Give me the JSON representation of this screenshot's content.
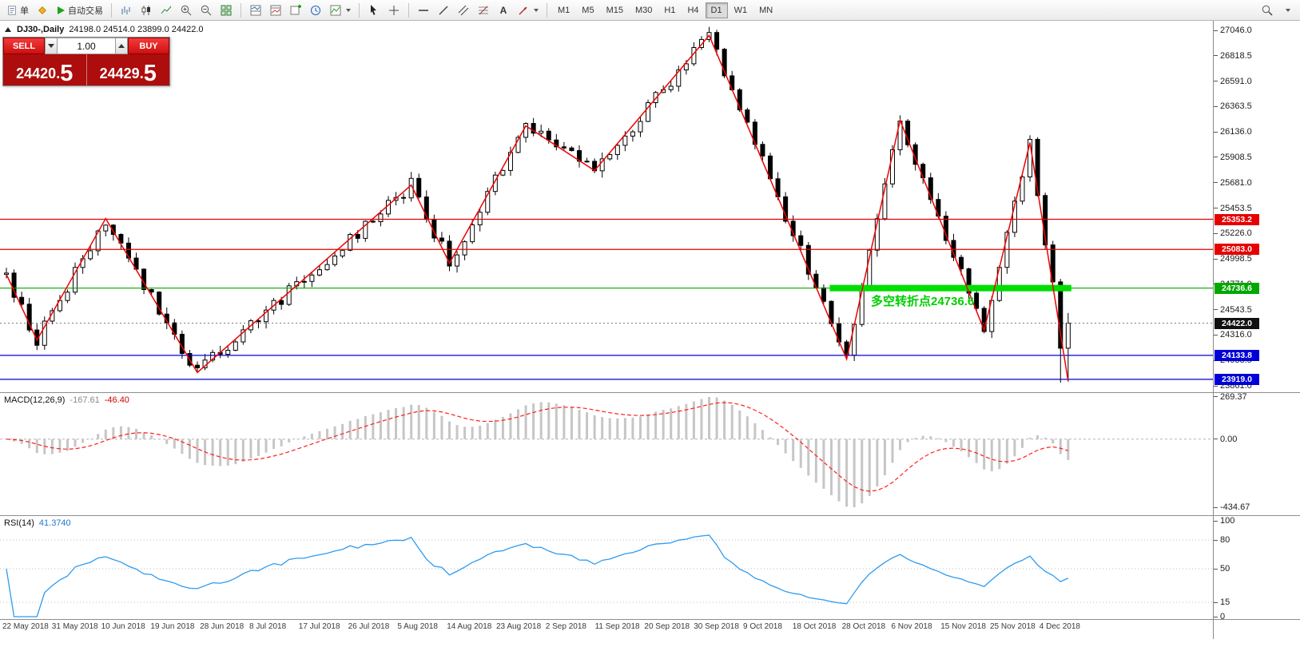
{
  "toolbar": {
    "order_label": "单",
    "autotrading_label": "自动交易",
    "text_tool_label": "A",
    "timeframes": [
      "M1",
      "M5",
      "M15",
      "M30",
      "H1",
      "H4",
      "D1",
      "W1",
      "MN"
    ],
    "active_timeframe": "D1"
  },
  "one_click": {
    "sell_label": "SELL",
    "buy_label": "BUY",
    "volume": "1.00",
    "sell_price_main": "24420.",
    "sell_price_big": "5",
    "buy_price_main": "24429.",
    "buy_price_big": "5"
  },
  "chart": {
    "symbol_title": "DJ30-,Daily",
    "ohlc_text": "24198.0 24514.0 23899.0 24422.0",
    "annotation": "多空转折点24736.6"
  },
  "macd_panel": {
    "name": "MACD(12,26,9)",
    "value_main": "-167.61",
    "value_signal": "-46.40",
    "axis_labels": [
      "269.37",
      "0.00",
      "-434.67"
    ]
  },
  "rsi_panel": {
    "name": "RSI(14)",
    "value": "41.3740",
    "axis_labels": [
      "100",
      "80",
      "50",
      "15",
      "0"
    ]
  },
  "chart_data": {
    "type": "candlestick",
    "symbol": "DJ30",
    "timeframe": "Daily",
    "title": "DJ30-,Daily",
    "ohlc_current": {
      "open": 24198.0,
      "high": 24514.0,
      "low": 23899.0,
      "close": 24422.0
    },
    "price_axis_ticks": [
      27046.0,
      26818.5,
      26591.0,
      26363.5,
      26136.0,
      25908.5,
      25681.0,
      25453.5,
      25226.0,
      24998.5,
      24771.0,
      24543.5,
      24316.0,
      24088.5,
      23861.0
    ],
    "horizontal_levels": [
      {
        "price": 25353.2,
        "label": "25353.2",
        "color": "#e60000"
      },
      {
        "price": 25083.0,
        "label": "25083.0",
        "color": "#e60000"
      },
      {
        "price": 24736.6,
        "label": "24736.6",
        "color": "#00a800"
      },
      {
        "price": 24133.8,
        "label": "24133.8",
        "color": "#0000d8"
      },
      {
        "price": 23919.0,
        "label": "23919.0",
        "color": "#0000d8"
      }
    ],
    "current_price": {
      "price": 24422.0,
      "label": "24422.0",
      "color": "#000000"
    },
    "highlight_zone": {
      "price": 24736.6,
      "color": "#00dd00",
      "i_from": 108,
      "i_to": 139
    },
    "annotation": {
      "text": "多空转折点24736.6",
      "color": "#00ce00",
      "price": 24640,
      "i": 113
    },
    "zigzag_points": [
      {
        "i": 0,
        "price": 24860
      },
      {
        "i": 4,
        "price": 24270
      },
      {
        "i": 13,
        "price": 25360
      },
      {
        "i": 25,
        "price": 23980
      },
      {
        "i": 53,
        "price": 25660
      },
      {
        "i": 58,
        "price": 24960
      },
      {
        "i": 68,
        "price": 26190
      },
      {
        "i": 77,
        "price": 25790
      },
      {
        "i": 92,
        "price": 27000
      },
      {
        "i": 110,
        "price": 24100
      },
      {
        "i": 117,
        "price": 26240
      },
      {
        "i": 128,
        "price": 24360
      },
      {
        "i": 134,
        "price": 26040
      },
      {
        "i": 139,
        "price": 23900
      }
    ],
    "candle_count": 140,
    "indicators": [
      {
        "type": "MACD",
        "params": [
          12,
          26,
          9
        ],
        "current_values": [
          -167.61,
          -46.4
        ],
        "axis_range": [
          -434.67,
          269.37
        ]
      },
      {
        "type": "RSI",
        "params": [
          14
        ],
        "current_value": 41.374,
        "levels": [
          80,
          50,
          15
        ],
        "axis_range": [
          0,
          100
        ]
      }
    ],
    "x_axis_dates": [
      "22 May 2018",
      "31 May 2018",
      "10 Jun 2018",
      "19 Jun 2018",
      "28 Jun 2018",
      "8 Jul 2018",
      "17 Jul 2018",
      "26 Jul 2018",
      "5 Aug 2018",
      "14 Aug 2018",
      "23 Aug 2018",
      "2 Sep 2018",
      "11 Sep 2018",
      "20 Sep 2018",
      "30 Sep 2018",
      "9 Oct 2018",
      "18 Oct 2018",
      "28 Oct 2018",
      "6 Nov 2018",
      "15 Nov 2018",
      "25 Nov 2018",
      "4 Dec 2018"
    ]
  }
}
